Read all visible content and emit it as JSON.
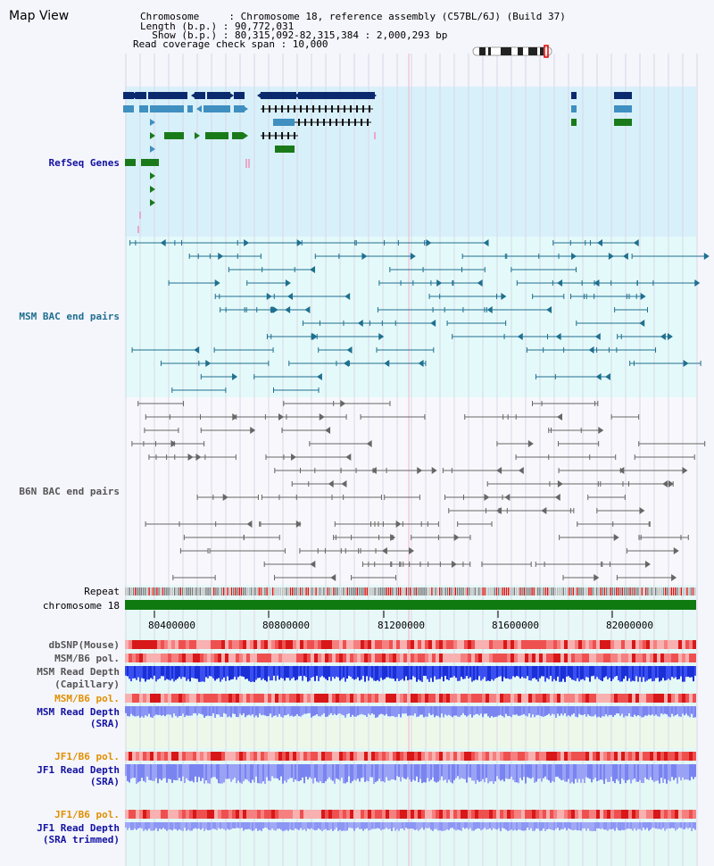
{
  "header": {
    "title": "Map View",
    "info_lines": [
      "Chromosome     : Chromosome 18, reference assembly (C57BL/6J) (Build 37)",
      "Length (b.p.) : 90,772,031",
      "  Show (b.p.) : 80,315,092-82,315,384 : 2,000,293 bp",
      "Read coverage check span : 10,000"
    ]
  },
  "tracks": {
    "refseq": "RefSeq Genes",
    "msm_bac": "MSM BAC end pairs",
    "b6n_bac": "B6N BAC end pairs",
    "repeat": "Repeat",
    "chromosome": "chromosome 18",
    "dbsnp": "dbSNP(Mouse)",
    "msm_b6_pol_1": "MSM/B6 pol.",
    "msm_read_depth_cap": [
      "MSM Read Depth",
      "(Capillary)"
    ],
    "msm_b6_pol_2": "MSM/B6 pol.",
    "msm_read_depth_sra": [
      "MSM Read Depth",
      "(SRA)"
    ],
    "jf1_b6_pol_1": "JF1/B6 pol.",
    "jf1_read_depth_sra": [
      "JF1 Read Depth",
      "(SRA)"
    ],
    "jf1_b6_pol_2": "JF1/B6 pol.",
    "jf1_read_depth_trim": [
      "JF1 Read Depth",
      "(SRA trimmed)"
    ]
  },
  "ruler": {
    "ticks": [
      "80400000",
      "80800000",
      "81200000",
      "81600000",
      "82000000"
    ]
  },
  "colors": {
    "refseq_bg": "#d8f0fa",
    "bac_bg": "#e4fafa",
    "navy": "#0b2a6e",
    "gene_blue": "#3f8fc0",
    "gene_green": "#1a7a1a",
    "msm_line": "#1f6f8f",
    "b6n_line": "#666666",
    "chrom_green": "#0f7a0f",
    "label_blue": "#1212a0",
    "label_teal": "#1f6f8f",
    "label_orange": "#e09000",
    "label_gray": "#555555"
  }
}
